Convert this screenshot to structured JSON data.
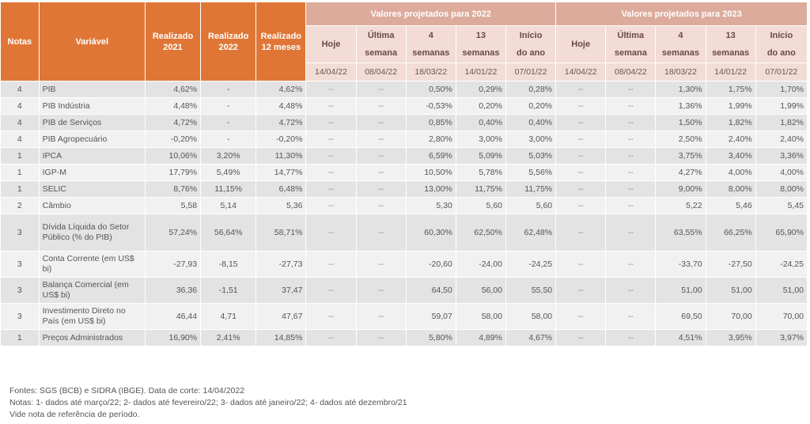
{
  "header": {
    "notas": "Notas",
    "variavel": "Variável",
    "realizado_2021": [
      "Realizado",
      "2021"
    ],
    "realizado_2022": [
      "Realizado",
      "2022"
    ],
    "realizado_12m": [
      "Realizado",
      "12 meses"
    ],
    "group_2022": "Valores projetados para 2022",
    "group_2023": "Valores projetados para 2023",
    "sub": [
      [
        "Hoje",
        ""
      ],
      [
        "Última",
        "semana"
      ],
      [
        "4",
        "semanas"
      ],
      [
        "13",
        "semanas"
      ],
      [
        "Início",
        "do ano"
      ]
    ],
    "dates": [
      "14/04/22",
      "08/04/22",
      "18/03/22",
      "14/01/22",
      "07/01/22"
    ]
  },
  "rows": [
    {
      "nota": "4",
      "var": "PIB",
      "r2021": "4,62%",
      "r2022": "-",
      "r12": "4,62%",
      "p22": [
        "--",
        "--",
        "0,50%",
        "0,29%",
        "0,28%"
      ],
      "p23": [
        "--",
        "--",
        "1,30%",
        "1,75%",
        "1,70%"
      ]
    },
    {
      "nota": "4",
      "var": "PIB Indústria",
      "r2021": "4,48%",
      "r2022": "-",
      "r12": "4,48%",
      "p22": [
        "--",
        "--",
        "-0,53%",
        "0,20%",
        "0,20%"
      ],
      "p23": [
        "--",
        "--",
        "1,36%",
        "1,99%",
        "1,99%"
      ]
    },
    {
      "nota": "4",
      "var": "PIB de Serviços",
      "r2021": "4,72%",
      "r2022": "-",
      "r12": "4,72%",
      "p22": [
        "--",
        "--",
        "0,85%",
        "0,40%",
        "0,40%"
      ],
      "p23": [
        "--",
        "--",
        "1,50%",
        "1,82%",
        "1,82%"
      ]
    },
    {
      "nota": "4",
      "var": "PIB Agropecuário",
      "r2021": "-0,20%",
      "r2022": "-",
      "r12": "-0,20%",
      "p22": [
        "--",
        "--",
        "2,80%",
        "3,00%",
        "3,00%"
      ],
      "p23": [
        "--",
        "--",
        "2,50%",
        "2,40%",
        "2,40%"
      ]
    },
    {
      "nota": "1",
      "var": "IPCA",
      "r2021": "10,06%",
      "r2022": "3,20%",
      "r12": "11,30%",
      "p22": [
        "--",
        "--",
        "6,59%",
        "5,09%",
        "5,03%"
      ],
      "p23": [
        "--",
        "--",
        "3,75%",
        "3,40%",
        "3,36%"
      ]
    },
    {
      "nota": "1",
      "var": "IGP-M",
      "r2021": "17,79%",
      "r2022": "5,49%",
      "r12": "14,77%",
      "p22": [
        "--",
        "--",
        "10,50%",
        "5,78%",
        "5,56%"
      ],
      "p23": [
        "--",
        "--",
        "4,27%",
        "4,00%",
        "4,00%"
      ]
    },
    {
      "nota": "1",
      "var": "SELIC",
      "r2021": "8,76%",
      "r2022": "11,15%",
      "r12": "6,48%",
      "p22": [
        "--",
        "--",
        "13,00%",
        "11,75%",
        "11,75%"
      ],
      "p23": [
        "--",
        "--",
        "9,00%",
        "8,00%",
        "8,00%"
      ]
    },
    {
      "nota": "2",
      "var": "Câmbio",
      "r2021": "5,58",
      "r2022": "5,14",
      "r12": "5,36",
      "p22": [
        "--",
        "--",
        "5,30",
        "5,60",
        "5,60"
      ],
      "p23": [
        "--",
        "--",
        "5,22",
        "5,46",
        "5,45"
      ]
    },
    {
      "nota": "3",
      "var": "Dívida Líquida do Setor Público (% do PIB)",
      "r2021": "57,24%",
      "r2022": "56,64%",
      "r12": "58,71%",
      "p22": [
        "--",
        "--",
        "60,30%",
        "62,50%",
        "62,48%"
      ],
      "p23": [
        "--",
        "--",
        "63,55%",
        "66,25%",
        "65,90%"
      ]
    },
    {
      "nota": "3",
      "var": "Conta Corrente (em US$ bi)",
      "r2021": "-27,93",
      "r2022": "-8,15",
      "r12": "-27,73",
      "p22": [
        "--",
        "--",
        "-20,60",
        "-24,00",
        "-24,25"
      ],
      "p23": [
        "--",
        "--",
        "-33,70",
        "-27,50",
        "-24,25"
      ]
    },
    {
      "nota": "3",
      "var": "Balança Comercial (em US$ bi)",
      "r2021": "36,36",
      "r2022": "-1,51",
      "r12": "37,47",
      "p22": [
        "--",
        "--",
        "64,50",
        "56,00",
        "55,50"
      ],
      "p23": [
        "--",
        "--",
        "51,00",
        "51,00",
        "51,00"
      ]
    },
    {
      "nota": "3",
      "var": "Investimento Direto no País (em US$ bi)",
      "r2021": "46,44",
      "r2022": "4,71",
      "r12": "47,67",
      "p22": [
        "--",
        "--",
        "59,07",
        "58,00",
        "58,00"
      ],
      "p23": [
        "--",
        "--",
        "69,50",
        "70,00",
        "70,00"
      ]
    },
    {
      "nota": "1",
      "var": "Preços Administrados",
      "r2021": "16,90%",
      "r2022": "2,41%",
      "r12": "14,85%",
      "p22": [
        "--",
        "--",
        "5,80%",
        "4,89%",
        "4,67%"
      ],
      "p23": [
        "--",
        "--",
        "4,51%",
        "3,95%",
        "3,97%"
      ]
    }
  ],
  "footer": [
    "Fontes: SGS (BCB) e  SIDRA (IBGE). Data de corte: 14/04/2022",
    "Notas:  1- dados até março/22; 2- dados até fevereiro/22; 3- dados até janeiro/22; 4- dados até dezembro/21",
    "Vide nota de referência de período."
  ]
}
